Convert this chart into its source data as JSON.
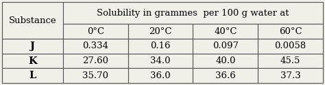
{
  "title": "Solubility in grammes  per 100 g water at",
  "substance_label": "Substance",
  "col_headers": [
    "0°C",
    "20°C",
    "40°C",
    "60°C"
  ],
  "rows": [
    {
      "name": "J",
      "values": [
        "0.334",
        "0.16",
        "0.097",
        "0.0058"
      ]
    },
    {
      "name": "K",
      "values": [
        "27.60",
        "34.0",
        "40.0",
        "45.5"
      ]
    },
    {
      "name": "L",
      "values": [
        "35.70",
        "36.0",
        "36.6",
        "37.3"
      ]
    }
  ],
  "bg_color": "#f0efe8",
  "border_color": "#555555",
  "font_size": 9.5,
  "header_font_size": 9.5,
  "fig_width": 4.74,
  "fig_height": 1.25,
  "dpi": 100
}
